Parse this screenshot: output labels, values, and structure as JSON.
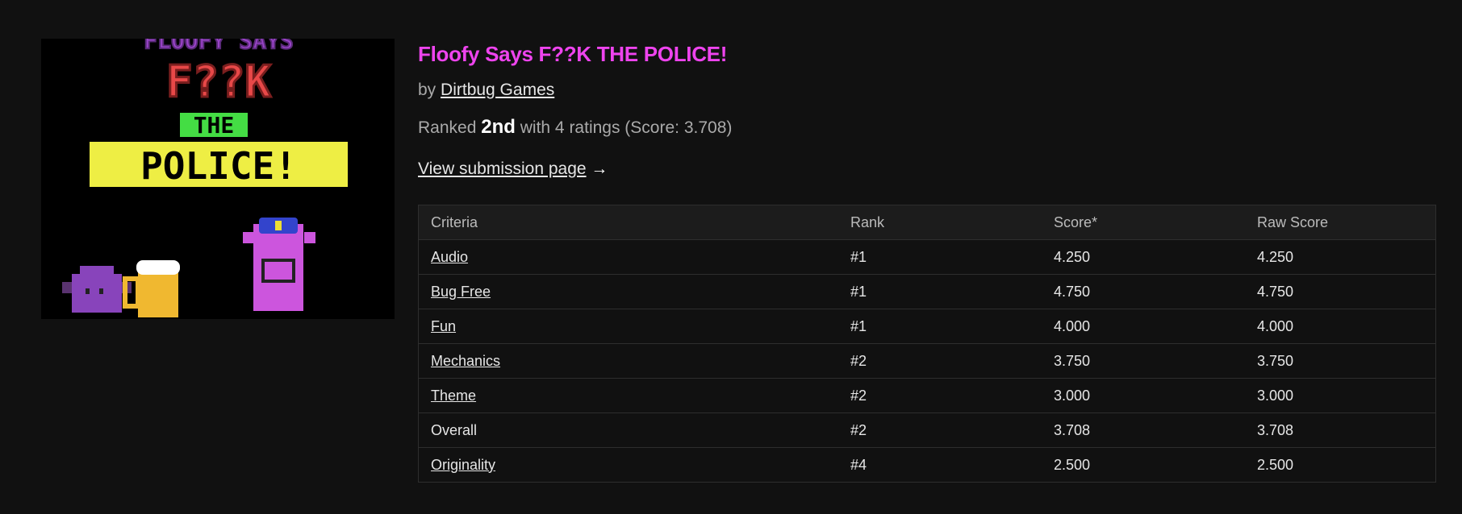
{
  "game": {
    "cover_alt": "Floofy Says F??K THE POLICE! cover art",
    "cover_lettering": [
      "FLOOFY SAYS",
      "F??K",
      "THE",
      "POLICE!"
    ],
    "title": "Floofy Says F??K THE POLICE!",
    "by_prefix": "by",
    "author": "Dirtbug Games",
    "ranked_prefix": "Ranked",
    "rank": "2nd",
    "ranked_suffix": "with 4 ratings (Score: 3.708)",
    "view_link": "View submission page",
    "view_arrow": "→"
  },
  "colors": {
    "title": "#ee44ee",
    "background": "#111111"
  },
  "table": {
    "headers": [
      "Criteria",
      "Rank",
      "Score*",
      "Raw Score"
    ],
    "rows": [
      {
        "criteria": "Audio",
        "link": true,
        "rank": "#1",
        "score": "4.250",
        "raw": "4.250"
      },
      {
        "criteria": "Bug Free",
        "link": true,
        "rank": "#1",
        "score": "4.750",
        "raw": "4.750"
      },
      {
        "criteria": "Fun",
        "link": true,
        "rank": "#1",
        "score": "4.000",
        "raw": "4.000"
      },
      {
        "criteria": "Mechanics",
        "link": true,
        "rank": "#2",
        "score": "3.750",
        "raw": "3.750"
      },
      {
        "criteria": "Theme",
        "link": true,
        "rank": "#2",
        "score": "3.000",
        "raw": "3.000"
      },
      {
        "criteria": "Overall",
        "link": false,
        "rank": "#2",
        "score": "3.708",
        "raw": "3.708"
      },
      {
        "criteria": "Originality",
        "link": true,
        "rank": "#4",
        "score": "2.500",
        "raw": "2.500"
      }
    ]
  }
}
